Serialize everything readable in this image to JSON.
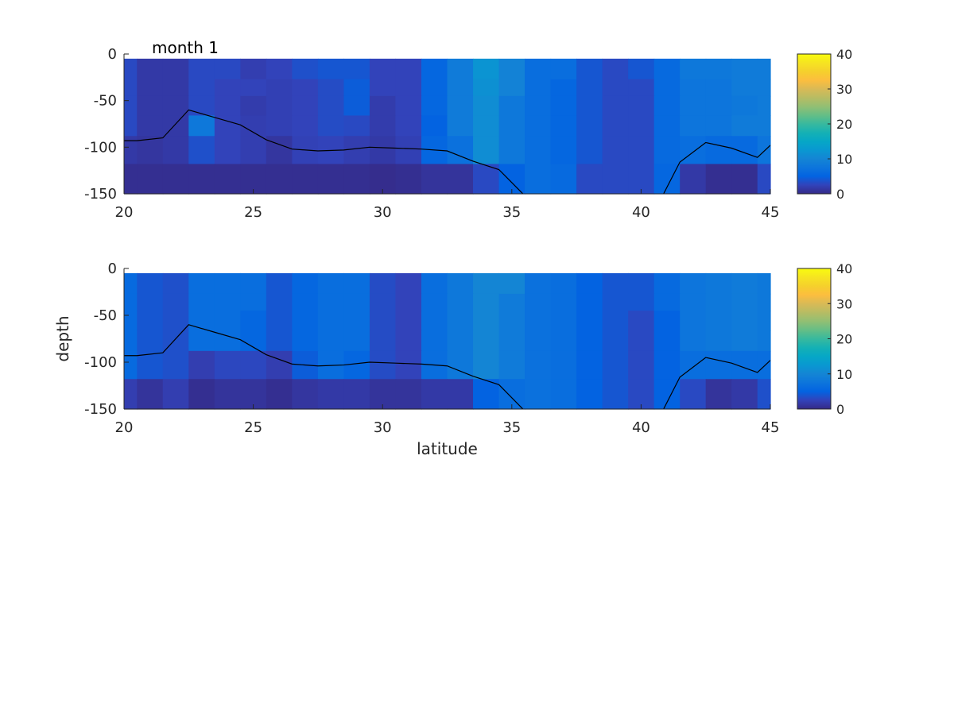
{
  "colormap": {
    "name": "parula",
    "anchors": [
      "#352a87",
      "#3243ba",
      "#0363e1",
      "#0d75dc",
      "#1485d4",
      "#0998d1",
      "#06a7c6",
      "#15b1b4",
      "#38b99e",
      "#65be86",
      "#92bf73",
      "#b7bc63",
      "#d9ba56",
      "#fcbe3e",
      "#f5d02c",
      "#f6e421",
      "#f9fb0e"
    ]
  },
  "chart_data": [
    {
      "type": "heatmap",
      "title": "month 1",
      "xlabel": "",
      "ylabel": "",
      "xlim": [
        20,
        45
      ],
      "ylim": [
        -150,
        0
      ],
      "xticks": [
        "20",
        "25",
        "30",
        "35",
        "40",
        "45"
      ],
      "yticks": [
        "0",
        "-50",
        "-100",
        "-150"
      ],
      "colorbar": {
        "clim": [
          0,
          40
        ],
        "ticks": [
          "0",
          "10",
          "20",
          "30",
          "40"
        ]
      },
      "x_centers": [
        20,
        21,
        22,
        23,
        24,
        25,
        26,
        27,
        28,
        29,
        30,
        31,
        32,
        33,
        34,
        35,
        36,
        37,
        38,
        39,
        40,
        41,
        42,
        43,
        44,
        45
      ],
      "depth_edges": [
        5,
        27,
        45,
        66,
        88,
        118,
        150
      ],
      "values": [
        [
          3,
          1.5,
          1.5,
          3,
          3,
          2,
          2.5,
          3.5,
          4,
          4,
          2.5,
          2.5,
          5.5,
          8.5,
          12,
          9.5,
          6.5,
          6.5,
          4,
          3,
          4,
          6,
          8,
          8,
          8.5,
          8.5
        ],
        [
          3,
          1.5,
          1.5,
          3,
          2.5,
          2.5,
          2.2,
          2.5,
          3.2,
          4.5,
          2.5,
          2.5,
          5.5,
          8.5,
          11.5,
          9.5,
          6.5,
          5.5,
          4,
          3,
          3,
          6,
          7.5,
          7.5,
          8.5,
          8.5
        ],
        [
          3,
          1.5,
          1.5,
          3,
          2.5,
          1.8,
          2.2,
          2.5,
          3.2,
          4.5,
          1.8,
          2.5,
          5.5,
          8.5,
          11,
          8,
          6.5,
          5.5,
          4,
          3,
          3,
          6,
          7.5,
          7.5,
          8,
          8.5
        ],
        [
          3,
          1.5,
          1.5,
          8,
          2.5,
          2,
          2.2,
          2.5,
          3.2,
          3,
          1.8,
          2.5,
          5,
          8.5,
          11,
          8,
          6.5,
          5.5,
          4,
          3,
          3,
          6,
          7.5,
          7.5,
          8.5,
          8.5
        ],
        [
          1.5,
          1.2,
          1.5,
          3.5,
          2.5,
          2,
          1.2,
          2.3,
          2.5,
          2,
          1.5,
          2.2,
          5.5,
          7,
          11,
          8,
          6.5,
          5.5,
          4,
          3,
          3,
          6,
          6.5,
          6,
          6,
          7.5
        ],
        [
          0.5,
          0.5,
          0.5,
          0.5,
          0.5,
          0.5,
          0.5,
          0.5,
          0.5,
          0.5,
          0.3,
          0.5,
          1,
          1,
          3,
          5,
          6.5,
          6,
          3,
          3,
          3,
          5.5,
          1.5,
          0.5,
          0.5,
          3
        ]
      ],
      "line": {
        "lat": [
          20,
          20.5,
          21.5,
          22.5,
          23.5,
          24.5,
          25.5,
          26.5,
          27.5,
          28.5,
          29.5,
          30.5,
          31.5,
          32.5,
          33.5,
          34.5,
          35.5,
          36.5,
          37.5,
          38.5,
          39.5,
          40.5,
          41.5,
          42.5,
          43.5,
          44.5,
          45
        ],
        "depth": [
          -93,
          -93,
          -90,
          -60,
          -68,
          -76,
          -92,
          -102,
          -104,
          -103,
          -100,
          -101,
          -102,
          -104,
          -115,
          -124,
          -152,
          -170,
          -180,
          -180,
          -175,
          -170,
          -116,
          -95,
          -101,
          -111,
          -98
        ]
      }
    },
    {
      "type": "heatmap",
      "title": "",
      "xlabel": "latitude",
      "ylabel": "depth",
      "xlim": [
        20,
        45
      ],
      "ylim": [
        -150,
        0
      ],
      "xticks": [
        "20",
        "25",
        "30",
        "35",
        "40",
        "45"
      ],
      "yticks": [
        "0",
        "-50",
        "-100",
        "-150"
      ],
      "colorbar": {
        "clim": [
          0,
          40
        ],
        "ticks": [
          "0",
          "10",
          "20",
          "30",
          "40"
        ]
      },
      "x_centers": [
        20,
        21,
        22,
        23,
        24,
        25,
        26,
        27,
        28,
        29,
        30,
        31,
        32,
        33,
        34,
        35,
        36,
        37,
        38,
        39,
        40,
        41,
        42,
        43,
        44,
        45
      ],
      "depth_edges": [
        5,
        27,
        45,
        66,
        88,
        118,
        150
      ],
      "values": [
        [
          6,
          4,
          3.5,
          6.5,
          6.5,
          6.5,
          4,
          5.5,
          6.5,
          6.5,
          3.2,
          2.5,
          6.5,
          8,
          10,
          10,
          7,
          6.5,
          5,
          4,
          4,
          6,
          7.5,
          8,
          8.5,
          8
        ],
        [
          6,
          4,
          3.5,
          6.5,
          6.5,
          6.5,
          4,
          5.5,
          6.5,
          6.5,
          3.2,
          2.5,
          6.5,
          8,
          10,
          8.5,
          7,
          6.5,
          5,
          4,
          4,
          6,
          7.5,
          8,
          8.5,
          8
        ],
        [
          6,
          4,
          3.5,
          6.5,
          6.5,
          5.5,
          4,
          5.5,
          6.5,
          6.5,
          3.2,
          2.5,
          6.5,
          8,
          10,
          8.5,
          7,
          6.5,
          5,
          4,
          3,
          5,
          7.5,
          8,
          8.5,
          8
        ],
        [
          6,
          4,
          3.5,
          6.5,
          6.5,
          5.5,
          4,
          5.5,
          6.5,
          6.5,
          3.2,
          2.5,
          6.5,
          8,
          10,
          8.5,
          7,
          6.5,
          5,
          4,
          3,
          5,
          7.5,
          8,
          8.5,
          8
        ],
        [
          6,
          4,
          3.5,
          2,
          2.8,
          2.8,
          2,
          4.5,
          6.5,
          5.5,
          3.2,
          2.5,
          6.5,
          8,
          10,
          8.5,
          7,
          6.5,
          5,
          4,
          3,
          5,
          6.5,
          6.5,
          6.5,
          6.5
        ],
        [
          2,
          1,
          2,
          0.5,
          1,
          1,
          0.5,
          1.2,
          1.5,
          1.5,
          1,
          1,
          1.5,
          1.5,
          5,
          6.5,
          7,
          6.5,
          5,
          4,
          3,
          5,
          3,
          1,
          1.5,
          3.5
        ]
      ],
      "line": {
        "lat": [
          20,
          20.5,
          21.5,
          22.5,
          23.5,
          24.5,
          25.5,
          26.5,
          27.5,
          28.5,
          29.5,
          30.5,
          31.5,
          32.5,
          33.5,
          34.5,
          35.5,
          36.5,
          37.5,
          38.5,
          39.5,
          40.5,
          41.5,
          42.5,
          43.5,
          44.5,
          45
        ],
        "depth": [
          -93,
          -93,
          -90,
          -60,
          -68,
          -76,
          -92,
          -102,
          -104,
          -103,
          -100,
          -101,
          -102,
          -104,
          -115,
          -124,
          -152,
          -170,
          -180,
          -180,
          -175,
          -170,
          -116,
          -95,
          -101,
          -111,
          -98
        ]
      }
    }
  ]
}
